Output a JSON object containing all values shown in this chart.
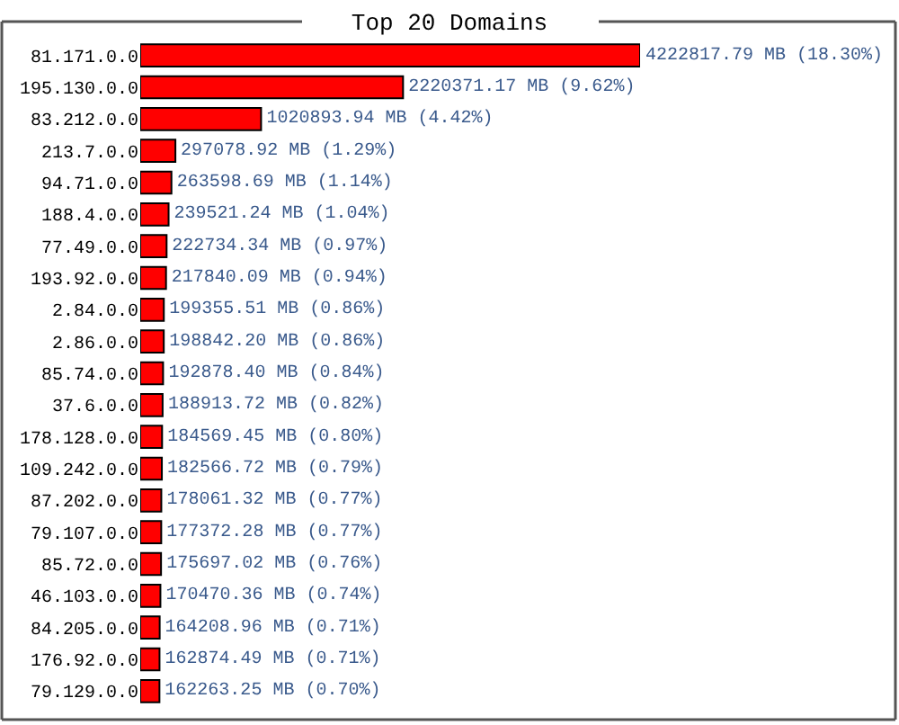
{
  "chart_data": {
    "type": "bar",
    "orientation": "horizontal",
    "title": "Top 20 Domains",
    "categories": [
      "81.171.0.0",
      "195.130.0.0",
      "83.212.0.0",
      "213.7.0.0",
      "94.71.0.0",
      "188.4.0.0",
      "77.49.0.0",
      "193.92.0.0",
      "2.84.0.0",
      "2.86.0.0",
      "85.74.0.0",
      "37.6.0.0",
      "178.128.0.0",
      "109.242.0.0",
      "87.202.0.0",
      "79.107.0.0",
      "85.72.0.0",
      "46.103.0.0",
      "84.205.0.0",
      "176.92.0.0",
      "79.129.0.0"
    ],
    "values": [
      4222817.79,
      2220371.17,
      1020893.94,
      297078.92,
      263598.69,
      239521.24,
      222734.34,
      217840.09,
      199355.51,
      198842.2,
      192878.4,
      188913.72,
      184569.45,
      182566.72,
      178061.32,
      177372.28,
      175697.02,
      170470.36,
      164208.96,
      162874.49,
      162263.25
    ],
    "value_labels": [
      "4222817.79 MB (18.30%)",
      "2220371.17 MB (9.62%)",
      "1020893.94 MB (4.42%)",
      "297078.92 MB (1.29%)",
      "263598.69 MB (1.14%)",
      "239521.24 MB (1.04%)",
      "222734.34 MB (0.97%)",
      "217840.09 MB (0.94%)",
      "199355.51 MB (0.86%)",
      "198842.20 MB (0.86%)",
      "192878.40 MB (0.84%)",
      "188913.72 MB (0.82%)",
      "184569.45 MB (0.80%)",
      "182566.72 MB (0.79%)",
      "178061.32 MB (0.77%)",
      "177372.28 MB (0.77%)",
      "175697.02 MB (0.76%)",
      "170470.36 MB (0.74%)",
      "164208.96 MB (0.71%)",
      "162874.49 MB (0.71%)",
      "162263.25 MB (0.70%)"
    ],
    "color": "#ff0000"
  }
}
